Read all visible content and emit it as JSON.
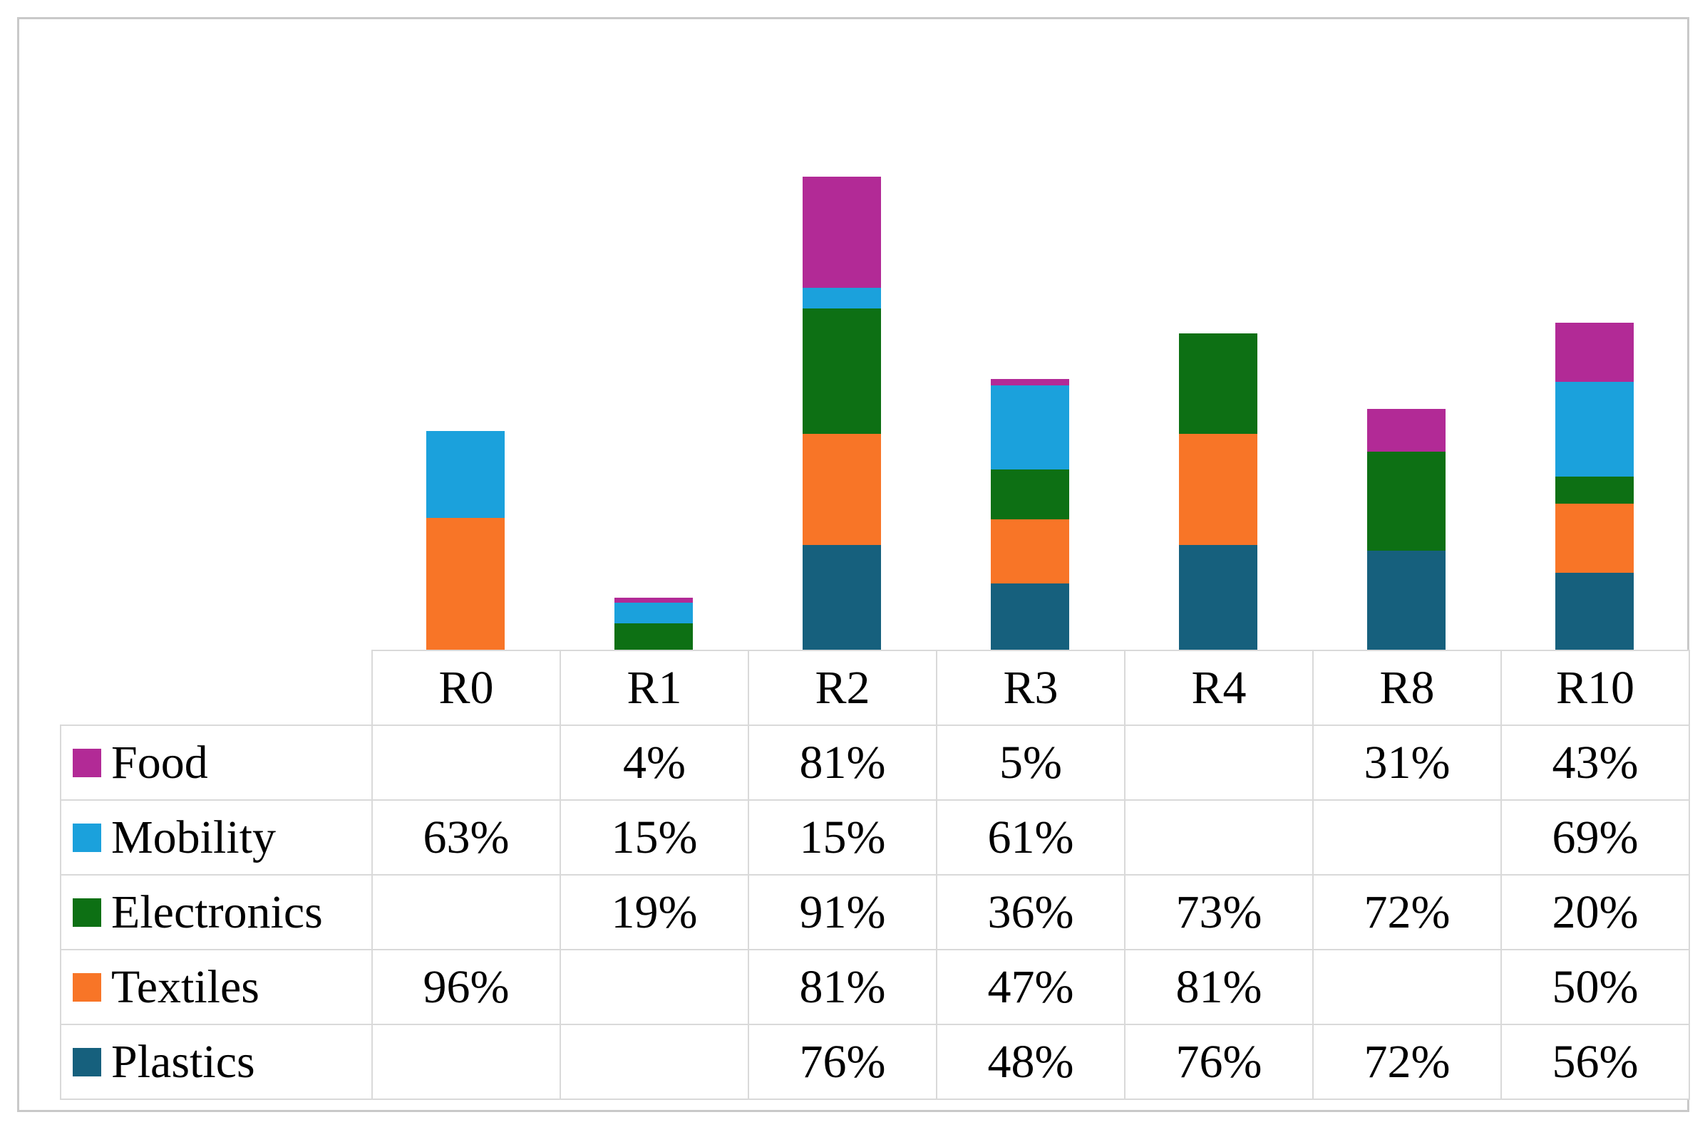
{
  "figure": {
    "background_color": "#ffffff",
    "border_color": "#c9c9c9",
    "gridline_color": "#d9d9d9"
  },
  "chart_data": {
    "type": "bar",
    "stacked": true,
    "categories": [
      "R0",
      "R1",
      "R2",
      "R3",
      "R4",
      "R8",
      "R10"
    ],
    "series": [
      {
        "name": "Food",
        "color": "#b22a96",
        "values": [
          null,
          4,
          81,
          5,
          null,
          31,
          43
        ]
      },
      {
        "name": "Mobility",
        "color": "#1ba1dc",
        "values": [
          63,
          15,
          15,
          61,
          null,
          null,
          69
        ]
      },
      {
        "name": "Electronics",
        "color": "#0d7014",
        "values": [
          null,
          19,
          91,
          36,
          73,
          72,
          20
        ]
      },
      {
        "name": "Textiles",
        "color": "#f87527",
        "values": [
          96,
          null,
          81,
          47,
          81,
          null,
          50
        ]
      },
      {
        "name": "Plastics",
        "color": "#16607d",
        "values": [
          null,
          null,
          76,
          48,
          76,
          72,
          56
        ]
      }
    ],
    "stack_order_bottom_to_top": [
      "Plastics",
      "Textiles",
      "Electronics",
      "Mobility",
      "Food"
    ],
    "value_unit": "%",
    "title": "",
    "xlabel": "",
    "ylabel": "",
    "axes_hidden": true,
    "gridlines": false,
    "legend_position": "table-first-column",
    "bar_totals": {
      "R0": 159,
      "R1": 38,
      "R2": 344,
      "R3": 197,
      "R4": 230,
      "R8": 175,
      "R10": 238
    }
  },
  "table": {
    "corner_label": "",
    "column_headers": [
      "R0",
      "R1",
      "R2",
      "R3",
      "R4",
      "R8",
      "R10"
    ],
    "rows": [
      {
        "label": "Food",
        "swatch_color": "#b22a96",
        "cells": [
          "",
          "4%",
          "81%",
          "5%",
          "",
          "31%",
          "43%"
        ]
      },
      {
        "label": "Mobility",
        "swatch_color": "#1ba1dc",
        "cells": [
          "63%",
          "15%",
          "15%",
          "61%",
          "",
          "",
          "69%"
        ]
      },
      {
        "label": "Electronics",
        "swatch_color": "#0d7014",
        "cells": [
          "",
          "19%",
          "91%",
          "36%",
          "73%",
          "72%",
          "20%"
        ]
      },
      {
        "label": "Textiles",
        "swatch_color": "#f87527",
        "cells": [
          "96%",
          "",
          "81%",
          "47%",
          "81%",
          "",
          "50%"
        ]
      },
      {
        "label": "Plastics",
        "swatch_color": "#16607d",
        "cells": [
          "",
          "",
          "76%",
          "48%",
          "76%",
          "72%",
          "56%"
        ]
      }
    ]
  }
}
